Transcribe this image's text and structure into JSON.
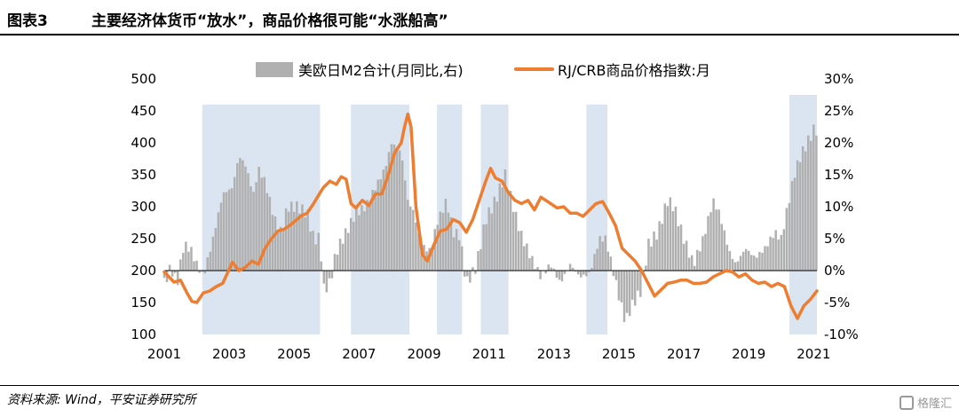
{
  "header": {
    "figure_label": "图表3",
    "title": "主要经济体货币“放水”，商品价格很可能“水涨船高”"
  },
  "footer": {
    "source": "资料来源: Wind，平安证券研究所",
    "watermark": "格隆汇"
  },
  "colors": {
    "bars": "#b0b0b0",
    "line": "#ed7d31",
    "shade": "#dbe5f1"
  },
  "chart_data": {
    "type": "bar+line",
    "x_ticks": [
      "2001",
      "2003",
      "2005",
      "2007",
      "2009",
      "2011",
      "2013",
      "2015",
      "2017",
      "2019",
      "2021"
    ],
    "x_range": [
      2001,
      2021.1
    ],
    "y_left": {
      "ticks": [
        100,
        150,
        200,
        250,
        300,
        350,
        400,
        450,
        500
      ],
      "range": [
        100,
        500
      ]
    },
    "y_right": {
      "ticks": [
        "30%",
        "25%",
        "20%",
        "15%",
        "10%",
        "5%",
        "0%",
        "-5%",
        "-10%"
      ],
      "range": [
        -10,
        30
      ],
      "unit": "%"
    },
    "legend": [
      {
        "name": "美欧日M2合计(月同比,右)",
        "type": "bar"
      },
      {
        "name": "RJ/CRB商品价格指数:月",
        "type": "line"
      }
    ],
    "shaded_periods": [
      [
        2002.17,
        2005.8
      ],
      [
        2006.75,
        2008.55
      ],
      [
        2009.4,
        2010.17
      ],
      [
        2010.75,
        2011.6
      ],
      [
        2014.0,
        2014.65
      ],
      [
        2020.25,
        2021.1
      ]
    ],
    "m2_yoy_anchor": {
      "unit": "%",
      "points": [
        [
          2001.0,
          -2
        ],
        [
          2001.2,
          0.5
        ],
        [
          2001.4,
          -2
        ],
        [
          2001.6,
          4
        ],
        [
          2001.8,
          3.5
        ],
        [
          2002.0,
          1
        ],
        [
          2002.2,
          -1
        ],
        [
          2002.5,
          5
        ],
        [
          2002.8,
          12
        ],
        [
          2003.1,
          13
        ],
        [
          2003.3,
          18
        ],
        [
          2003.5,
          16.5
        ],
        [
          2003.75,
          12
        ],
        [
          2003.9,
          16
        ],
        [
          2004.1,
          14
        ],
        [
          2004.4,
          8
        ],
        [
          2004.6,
          6
        ],
        [
          2004.8,
          10
        ],
        [
          2005.1,
          10
        ],
        [
          2005.4,
          9
        ],
        [
          2005.6,
          5
        ],
        [
          2005.8,
          5
        ],
        [
          2005.9,
          -3
        ],
        [
          2006.1,
          -2
        ],
        [
          2006.3,
          3
        ],
        [
          2006.6,
          6
        ],
        [
          2006.9,
          9
        ],
        [
          2007.2,
          10
        ],
        [
          2007.5,
          13
        ],
        [
          2007.8,
          16
        ],
        [
          2008.0,
          20
        ],
        [
          2008.3,
          18.5
        ],
        [
          2008.5,
          11
        ],
        [
          2008.7,
          9
        ],
        [
          2008.9,
          4
        ],
        [
          2009.2,
          3
        ],
        [
          2009.4,
          7.5
        ],
        [
          2009.7,
          11
        ],
        [
          2009.9,
          6
        ],
        [
          2010.1,
          5.5
        ],
        [
          2010.3,
          -2
        ],
        [
          2010.6,
          0.5
        ],
        [
          2010.9,
          8
        ],
        [
          2011.2,
          11
        ],
        [
          2011.5,
          15
        ],
        [
          2011.8,
          9
        ],
        [
          2012.0,
          5.5
        ],
        [
          2012.3,
          2
        ],
        [
          2012.6,
          -1
        ],
        [
          2012.9,
          1
        ],
        [
          2013.2,
          -2
        ],
        [
          2013.5,
          1
        ],
        [
          2013.8,
          -1
        ],
        [
          2014.1,
          -0.5
        ],
        [
          2014.4,
          5
        ],
        [
          2014.6,
          5
        ],
        [
          2014.8,
          0.5
        ],
        [
          2015.0,
          -4
        ],
        [
          2015.2,
          -8
        ],
        [
          2015.4,
          -5.5
        ],
        [
          2015.7,
          -3
        ],
        [
          2015.9,
          4
        ],
        [
          2016.2,
          6
        ],
        [
          2016.5,
          11
        ],
        [
          2016.7,
          10
        ],
        [
          2017.0,
          5
        ],
        [
          2017.3,
          1
        ],
        [
          2017.6,
          5
        ],
        [
          2017.9,
          11
        ],
        [
          2018.1,
          9
        ],
        [
          2018.4,
          3
        ],
        [
          2018.6,
          1
        ],
        [
          2018.9,
          3.5
        ],
        [
          2019.2,
          2
        ],
        [
          2019.5,
          3.5
        ],
        [
          2019.8,
          6
        ],
        [
          2020.0,
          5
        ],
        [
          2020.2,
          10
        ],
        [
          2020.4,
          15
        ],
        [
          2020.6,
          18
        ],
        [
          2020.8,
          20
        ],
        [
          2021.0,
          22
        ],
        [
          2021.1,
          22
        ]
      ]
    },
    "crb_index": {
      "unit": "index",
      "points": [
        [
          2001.0,
          198
        ],
        [
          2001.3,
          182
        ],
        [
          2001.5,
          185
        ],
        [
          2001.7,
          165
        ],
        [
          2001.85,
          152
        ],
        [
          2002.0,
          150
        ],
        [
          2002.2,
          165
        ],
        [
          2002.4,
          168
        ],
        [
          2002.6,
          175
        ],
        [
          2002.8,
          180
        ],
        [
          2003.1,
          213
        ],
        [
          2003.3,
          200
        ],
        [
          2003.5,
          205
        ],
        [
          2003.7,
          215
        ],
        [
          2003.9,
          210
        ],
        [
          2004.1,
          235
        ],
        [
          2004.3,
          250
        ],
        [
          2004.5,
          262
        ],
        [
          2004.7,
          265
        ],
        [
          2004.9,
          272
        ],
        [
          2005.2,
          285
        ],
        [
          2005.4,
          290
        ],
        [
          2005.6,
          305
        ],
        [
          2005.8,
          322
        ],
        [
          2005.9,
          330
        ],
        [
          2006.1,
          340
        ],
        [
          2006.3,
          335
        ],
        [
          2006.45,
          347
        ],
        [
          2006.6,
          343
        ],
        [
          2006.75,
          305
        ],
        [
          2006.9,
          298
        ],
        [
          2007.1,
          310
        ],
        [
          2007.3,
          302
        ],
        [
          2007.5,
          320
        ],
        [
          2007.7,
          320
        ],
        [
          2007.9,
          350
        ],
        [
          2008.1,
          385
        ],
        [
          2008.3,
          400
        ],
        [
          2008.4,
          425
        ],
        [
          2008.5,
          445
        ],
        [
          2008.6,
          425
        ],
        [
          2008.75,
          300
        ],
        [
          2008.95,
          225
        ],
        [
          2009.1,
          215
        ],
        [
          2009.3,
          240
        ],
        [
          2009.5,
          262
        ],
        [
          2009.7,
          265
        ],
        [
          2009.9,
          280
        ],
        [
          2010.1,
          275
        ],
        [
          2010.3,
          260
        ],
        [
          2010.5,
          280
        ],
        [
          2010.7,
          310
        ],
        [
          2010.9,
          340
        ],
        [
          2011.05,
          360
        ],
        [
          2011.2,
          345
        ],
        [
          2011.4,
          340
        ],
        [
          2011.6,
          322
        ],
        [
          2011.8,
          310
        ],
        [
          2012.0,
          305
        ],
        [
          2012.2,
          310
        ],
        [
          2012.4,
          295
        ],
        [
          2012.6,
          315
        ],
        [
          2012.9,
          305
        ],
        [
          2013.1,
          298
        ],
        [
          2013.3,
          300
        ],
        [
          2013.5,
          290
        ],
        [
          2013.7,
          290
        ],
        [
          2013.9,
          285
        ],
        [
          2014.1,
          295
        ],
        [
          2014.3,
          305
        ],
        [
          2014.5,
          308
        ],
        [
          2014.7,
          290
        ],
        [
          2014.9,
          270
        ],
        [
          2015.1,
          235
        ],
        [
          2015.3,
          225
        ],
        [
          2015.5,
          215
        ],
        [
          2015.7,
          200
        ],
        [
          2015.9,
          180
        ],
        [
          2016.1,
          160
        ],
        [
          2016.3,
          170
        ],
        [
          2016.5,
          180
        ],
        [
          2016.7,
          182
        ],
        [
          2016.9,
          185
        ],
        [
          2017.1,
          185
        ],
        [
          2017.3,
          180
        ],
        [
          2017.5,
          180
        ],
        [
          2017.7,
          182
        ],
        [
          2017.9,
          190
        ],
        [
          2018.1,
          195
        ],
        [
          2018.3,
          200
        ],
        [
          2018.5,
          198
        ],
        [
          2018.7,
          190
        ],
        [
          2018.9,
          195
        ],
        [
          2019.1,
          185
        ],
        [
          2019.3,
          180
        ],
        [
          2019.5,
          182
        ],
        [
          2019.7,
          175
        ],
        [
          2019.9,
          180
        ],
        [
          2020.1,
          175
        ],
        [
          2020.3,
          145
        ],
        [
          2020.5,
          125
        ],
        [
          2020.7,
          145
        ],
        [
          2020.9,
          155
        ],
        [
          2021.05,
          165
        ],
        [
          2021.1,
          168
        ]
      ]
    }
  }
}
